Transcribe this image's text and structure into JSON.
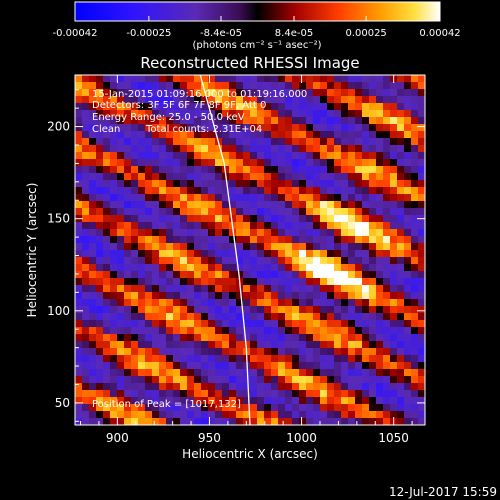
{
  "chart_data": {
    "type": "heatmap",
    "title": "Reconstructed RHESSI Image",
    "xlabel": "Heliocentric X (arcsec)",
    "ylabel": "Heliocentric Y (arcsec)",
    "xlim": [
      877,
      1067
    ],
    "ylim": [
      38,
      228
    ],
    "xticks": [
      "900",
      "950",
      "1000",
      "1050"
    ],
    "yticks": [
      "50",
      "100",
      "150",
      "200"
    ],
    "colorbar": {
      "ticks": [
        "-0.00042",
        "-0.00025",
        "-8.4e-05",
        "8.4e-05",
        "0.00025",
        "0.00042"
      ],
      "range": [
        -0.00042,
        0.00042
      ],
      "units": "(photons cm⁻² s⁻¹ asec⁻²)"
    },
    "annotations": {
      "time": "15-Jan-2015 01:09:16.000 to 01:19:16.000",
      "detectors": "Detectors: 3F 5F 6F 7F 8F 9F, Att 0",
      "energy": "Energy Range: 25.0 - 50.0 keV",
      "clean": "Clean",
      "counts": "Total counts: 2.31E+04",
      "peak": "Position of Peak = [1017,132]"
    },
    "peak": [
      1017,
      132
    ],
    "footer_date": "12-Jul-2017 15:59"
  },
  "colors": {
    "background": "#000000",
    "text": "#ffffff",
    "limb_line": "#ffffff"
  }
}
